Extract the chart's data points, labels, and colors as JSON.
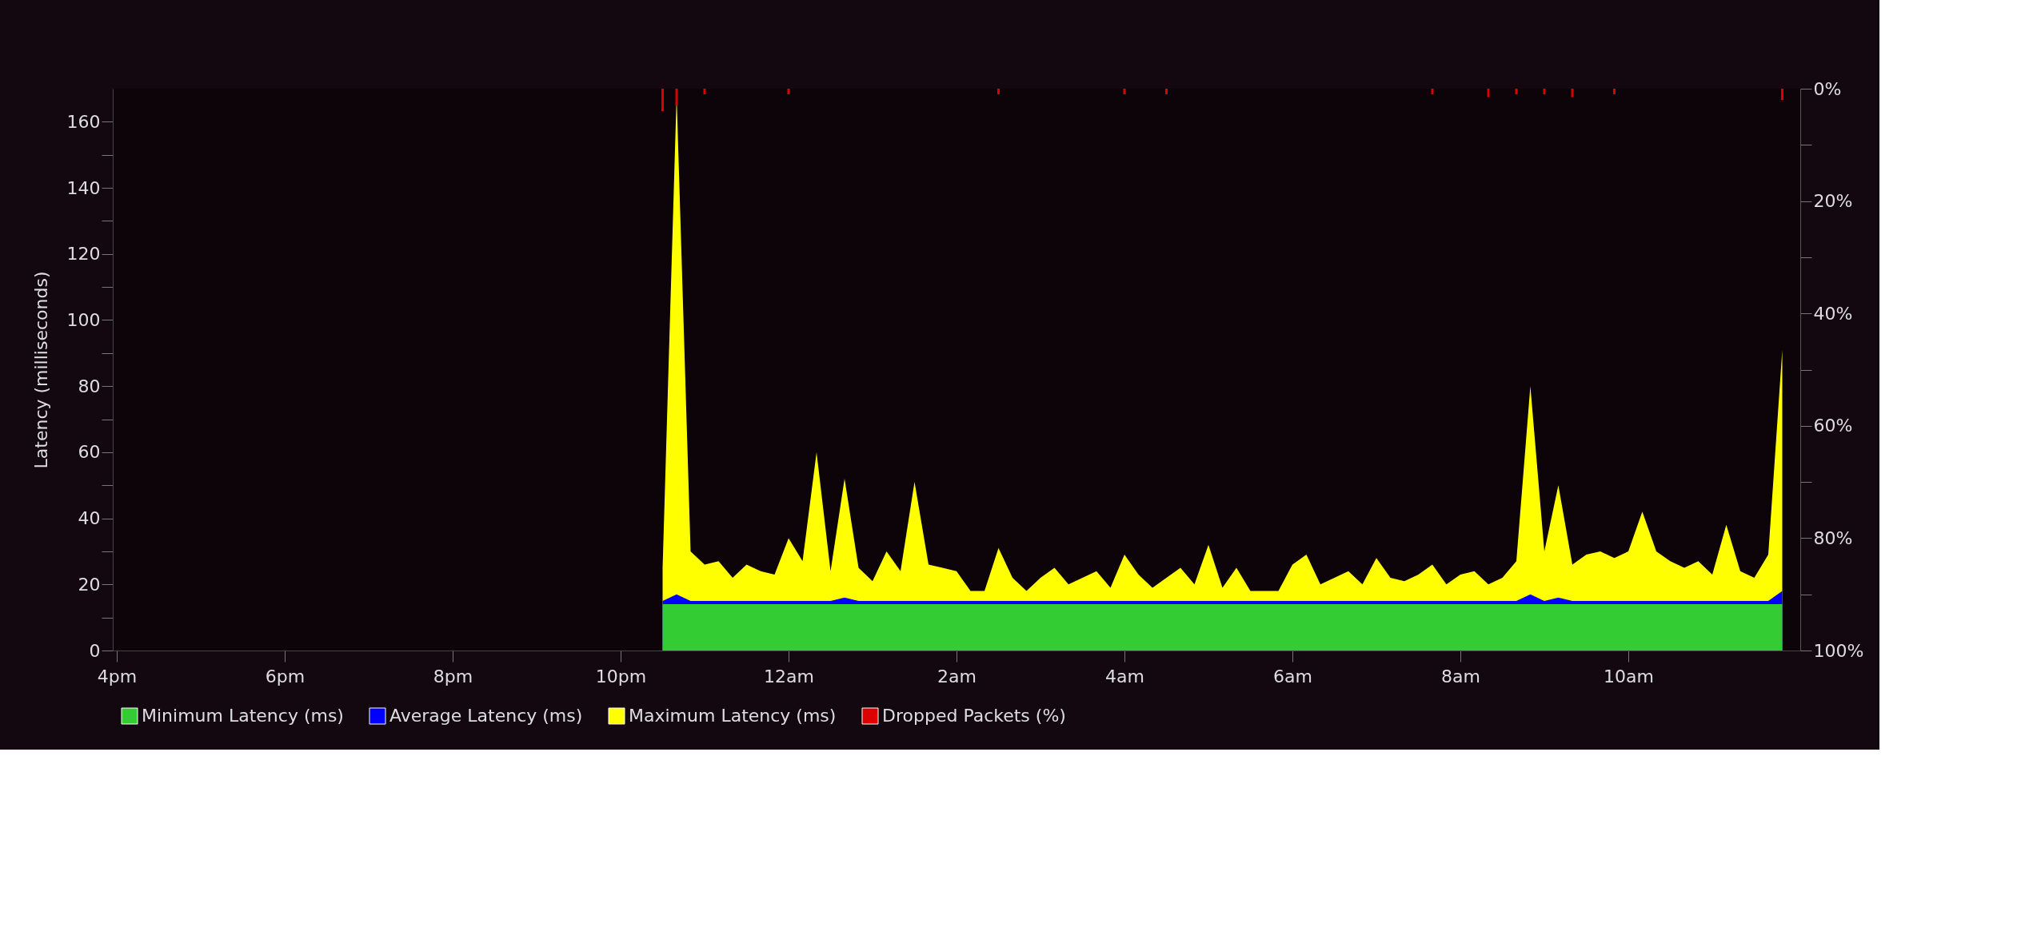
{
  "chart_data": {
    "type": "area",
    "ylabel": "Latency (milliseconds)",
    "ylim": [
      0,
      170
    ],
    "y2lim": [
      100,
      0
    ],
    "yticks": [
      0,
      {
        "value": 10,
        "label": null
      },
      20,
      {
        "value": 30,
        "label": null
      },
      40,
      {
        "value": 50,
        "label": null
      },
      60,
      {
        "value": 70,
        "label": null
      },
      80,
      {
        "value": 90,
        "label": null
      },
      100,
      {
        "value": 110,
        "label": null
      },
      120,
      {
        "value": 130,
        "label": null
      },
      140,
      {
        "value": 150,
        "label": null
      },
      160
    ],
    "y2ticks": [
      {
        "value": 0,
        "label": "0%"
      },
      {
        "value": 10,
        "label": null
      },
      {
        "value": 20,
        "label": "20%"
      },
      {
        "value": 30,
        "label": null
      },
      {
        "value": 40,
        "label": "40%"
      },
      {
        "value": 50,
        "label": null
      },
      {
        "value": 60,
        "label": "60%"
      },
      {
        "value": 70,
        "label": null
      },
      {
        "value": 80,
        "label": "80%"
      },
      {
        "value": 90,
        "label": null
      },
      {
        "value": 100,
        "label": "100%"
      }
    ],
    "categories": [
      "4pm",
      null,
      null,
      null,
      null,
      null,
      null,
      null,
      null,
      null,
      null,
      null,
      "6pm",
      null,
      null,
      null,
      null,
      null,
      null,
      null,
      null,
      null,
      null,
      null,
      "8pm",
      null,
      null,
      null,
      null,
      null,
      null,
      null,
      null,
      null,
      null,
      null,
      "10pm",
      null,
      null,
      null,
      null,
      null,
      null,
      null,
      null,
      null,
      null,
      null,
      "12am",
      null,
      null,
      null,
      null,
      null,
      null,
      null,
      null,
      null,
      null,
      null,
      "2am",
      null,
      null,
      null,
      null,
      null,
      null,
      null,
      null,
      null,
      null,
      null,
      "4am",
      null,
      null,
      null,
      null,
      null,
      null,
      null,
      null,
      null,
      null,
      null,
      "6am",
      null,
      null,
      null,
      null,
      null,
      null,
      null,
      null,
      null,
      null,
      null,
      "8am",
      null,
      null,
      null,
      null,
      null,
      null,
      null,
      null,
      null,
      null,
      null,
      "10am",
      null,
      null,
      null,
      null,
      null,
      null,
      null,
      null,
      null,
      null,
      null
    ],
    "series": [
      {
        "name": "Minimum Latency (ms)",
        "color": "#33cc33",
        "values": [
          null,
          null,
          null,
          null,
          null,
          null,
          null,
          null,
          null,
          null,
          null,
          null,
          null,
          null,
          null,
          null,
          null,
          null,
          null,
          null,
          null,
          null,
          null,
          null,
          null,
          null,
          null,
          null,
          null,
          null,
          null,
          null,
          null,
          null,
          null,
          null,
          null,
          null,
          null,
          14,
          14,
          14,
          14,
          14,
          14,
          14,
          14,
          14,
          14,
          14,
          14,
          14,
          14,
          14,
          14,
          14,
          14,
          14,
          14,
          14,
          14,
          14,
          14,
          14,
          14,
          14,
          14,
          14,
          14,
          14,
          14,
          14,
          14,
          14,
          14,
          14,
          14,
          14,
          14,
          14,
          14,
          14,
          14,
          14,
          14,
          14,
          14,
          14,
          14,
          14,
          14,
          14,
          14,
          14,
          14,
          14,
          14,
          14,
          14,
          14,
          14,
          14,
          14,
          14,
          14,
          14,
          14,
          14,
          14,
          14,
          14,
          14,
          14,
          14,
          14,
          14,
          14,
          14,
          14,
          14
        ]
      },
      {
        "name": "Average Latency (ms)",
        "color": "#0000ff",
        "values": [
          null,
          null,
          null,
          null,
          null,
          null,
          null,
          null,
          null,
          null,
          null,
          null,
          null,
          null,
          null,
          null,
          null,
          null,
          null,
          null,
          null,
          null,
          null,
          null,
          null,
          null,
          null,
          null,
          null,
          null,
          null,
          null,
          null,
          null,
          null,
          null,
          null,
          null,
          null,
          15,
          17,
          15,
          15,
          15,
          15,
          15,
          15,
          15,
          15,
          15,
          15,
          15,
          16,
          15,
          15,
          15,
          15,
          15,
          15,
          15,
          15,
          15,
          15,
          15,
          15,
          15,
          15,
          15,
          15,
          15,
          15,
          15,
          15,
          15,
          15,
          15,
          15,
          15,
          15,
          15,
          15,
          15,
          15,
          15,
          15,
          15,
          15,
          15,
          15,
          15,
          15,
          15,
          15,
          15,
          15,
          15,
          15,
          15,
          15,
          15,
          15,
          17,
          15,
          16,
          15,
          15,
          15,
          15,
          15,
          15,
          15,
          15,
          15,
          15,
          15,
          15,
          15,
          15,
          15,
          18
        ]
      },
      {
        "name": "Maximum Latency (ms)",
        "color": "#ffff00",
        "values": [
          null,
          null,
          null,
          null,
          null,
          null,
          null,
          null,
          null,
          null,
          null,
          null,
          null,
          null,
          null,
          null,
          null,
          null,
          null,
          null,
          null,
          null,
          null,
          null,
          null,
          null,
          null,
          null,
          null,
          null,
          null,
          null,
          null,
          null,
          null,
          null,
          null,
          null,
          null,
          25,
          168,
          30,
          26,
          27,
          22,
          26,
          24,
          23,
          34,
          27,
          60,
          24,
          52,
          25,
          21,
          30,
          24,
          51,
          26,
          25,
          24,
          18,
          18,
          31,
          22,
          18,
          22,
          25,
          20,
          22,
          24,
          19,
          29,
          23,
          19,
          22,
          25,
          20,
          32,
          19,
          25,
          18,
          18,
          18,
          26,
          29,
          20,
          22,
          24,
          20,
          28,
          22,
          21,
          23,
          26,
          20,
          23,
          24,
          20,
          22,
          27,
          80,
          30,
          50,
          26,
          29,
          30,
          28,
          30,
          42,
          30,
          27,
          25,
          27,
          23,
          38,
          24,
          22,
          29,
          91
        ]
      },
      {
        "name": "Dropped Packets (%)",
        "color": "#dd0000",
        "type": "bar",
        "axis": "y2",
        "values": [
          null,
          null,
          null,
          null,
          null,
          null,
          null,
          null,
          null,
          null,
          null,
          null,
          null,
          null,
          null,
          null,
          null,
          null,
          null,
          null,
          null,
          null,
          null,
          null,
          null,
          null,
          null,
          null,
          null,
          null,
          null,
          null,
          null,
          null,
          null,
          null,
          null,
          null,
          null,
          4,
          3,
          null,
          1,
          null,
          null,
          null,
          null,
          null,
          1,
          null,
          null,
          null,
          null,
          null,
          null,
          null,
          null,
          null,
          null,
          null,
          null,
          null,
          null,
          1,
          null,
          null,
          null,
          null,
          null,
          null,
          null,
          null,
          1,
          null,
          null,
          1,
          null,
          null,
          null,
          null,
          null,
          null,
          null,
          null,
          null,
          null,
          null,
          null,
          null,
          null,
          null,
          null,
          null,
          null,
          1,
          null,
          null,
          null,
          1.5,
          null,
          1,
          null,
          1,
          null,
          1.5,
          null,
          null,
          1,
          null,
          null,
          null,
          null,
          null,
          null,
          null,
          null,
          null,
          null,
          null,
          2
        ]
      }
    ],
    "legend": "bottom",
    "grid": false,
    "marker": "none"
  }
}
